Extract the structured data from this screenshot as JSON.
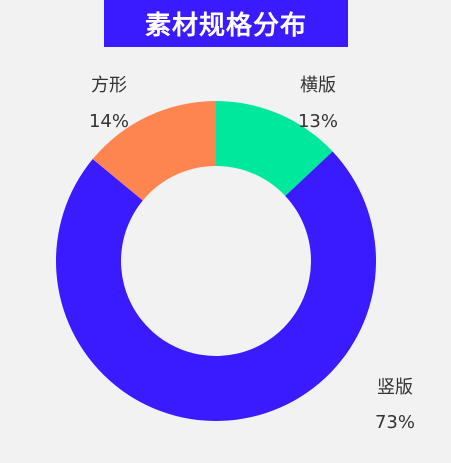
{
  "colors": {
    "background": "#f2f2f2",
    "title_background": "#3a1aff",
    "title_text": "#ffffff",
    "label_text": "#333333"
  },
  "chart_data": {
    "type": "pie",
    "variant": "donut",
    "title": "素材规格分布",
    "categories": [
      "横版",
      "竖版",
      "方形"
    ],
    "values": [
      13,
      73,
      14
    ],
    "labels": [
      "13%",
      "73%",
      "14%"
    ],
    "colors": [
      "#00e89c",
      "#3a1aff",
      "#ff8550"
    ],
    "legend": "none",
    "data_labels": "outside"
  }
}
